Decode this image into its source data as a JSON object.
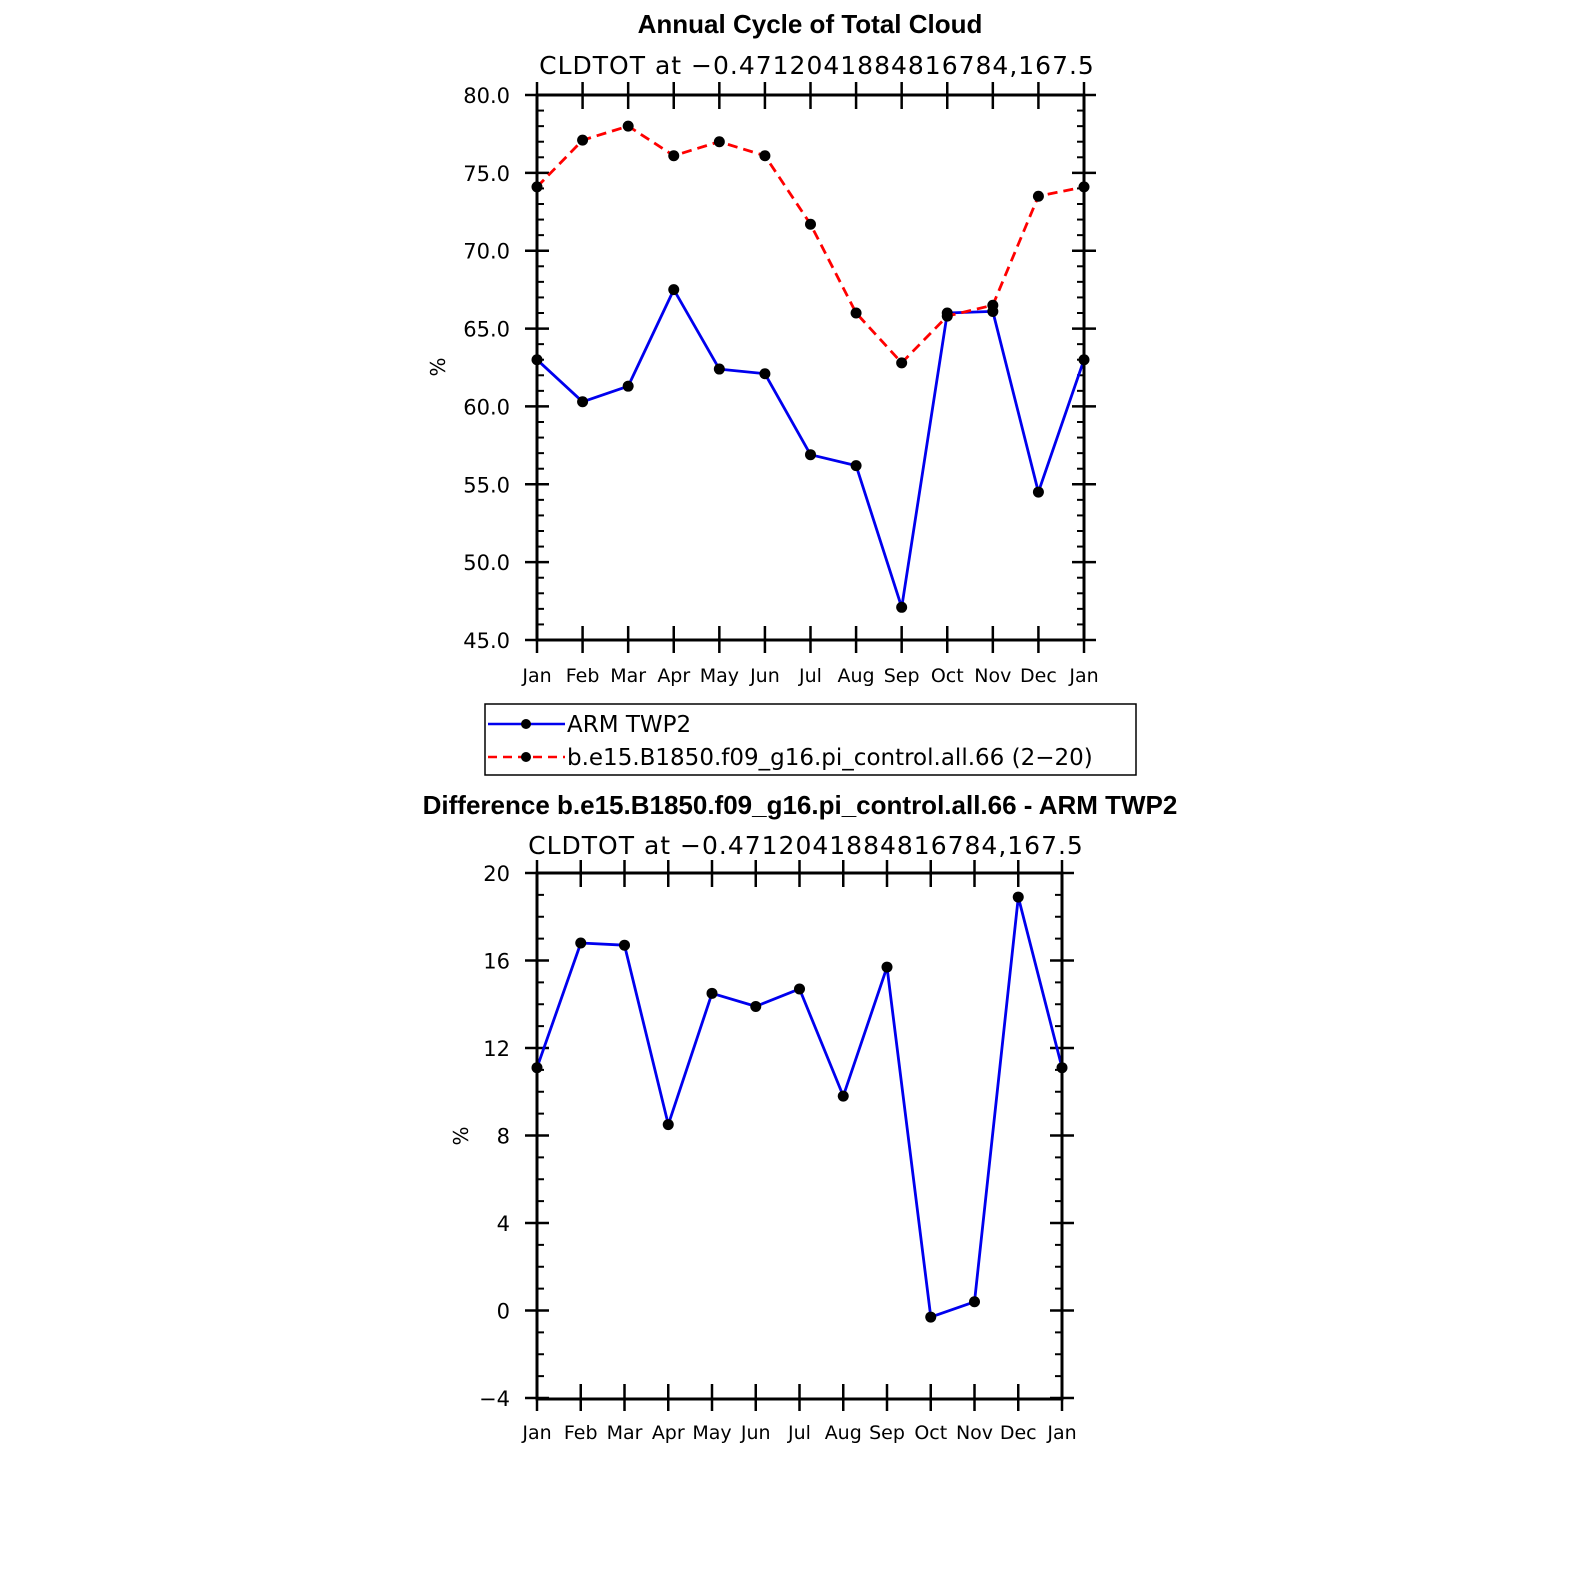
{
  "chart_data": [
    {
      "type": "line",
      "title": "Annual Cycle of Total Cloud",
      "subtitle": "CLDTOT at −0.4712041884816784,167.5",
      "xlabel": "",
      "ylabel": "%",
      "categories": [
        "Jan",
        "Feb",
        "Mar",
        "Apr",
        "May",
        "Jun",
        "Jul",
        "Aug",
        "Sep",
        "Oct",
        "Nov",
        "Dec",
        "Jan"
      ],
      "ylim": [
        45,
        80
      ],
      "yticks": [
        "45.0",
        "50.0",
        "55.0",
        "60.0",
        "65.0",
        "70.0",
        "75.0",
        "80.0"
      ],
      "grid": false,
      "legend_placement": "below",
      "series": [
        {
          "name": "ARM TWP2",
          "color": "#0000ee",
          "dashed": false,
          "values": [
            63.0,
            60.3,
            61.3,
            67.5,
            62.4,
            62.1,
            56.9,
            56.2,
            47.1,
            66.0,
            66.1,
            54.5,
            63.0
          ]
        },
        {
          "name": "b.e15.B1850.f09_g16.pi_control.all.66 (2−20)",
          "color": "#ff0000",
          "dashed": true,
          "values": [
            74.1,
            77.1,
            78.0,
            76.1,
            77.0,
            76.1,
            71.7,
            66.0,
            62.8,
            65.8,
            66.5,
            73.5,
            74.1
          ]
        }
      ]
    },
    {
      "type": "line",
      "title": "Difference b.e15.B1850.f09_g16.pi_control.all.66 - ARM TWP2",
      "subtitle": "CLDTOT at −0.4712041884816784,167.5",
      "xlabel": "",
      "ylabel": "%",
      "categories": [
        "Jan",
        "Feb",
        "Mar",
        "Apr",
        "May",
        "Jun",
        "Jul",
        "Aug",
        "Sep",
        "Oct",
        "Nov",
        "Dec",
        "Jan"
      ],
      "ylim": [
        -4,
        20
      ],
      "yticks": [
        "−4",
        "0",
        "4",
        "8",
        "12",
        "16",
        "20"
      ],
      "grid": false,
      "series": [
        {
          "color": "#0000ee",
          "dashed": false,
          "values": [
            11.1,
            16.8,
            16.7,
            8.5,
            14.5,
            13.9,
            14.7,
            9.8,
            15.7,
            -0.3,
            0.4,
            18.9,
            11.1
          ]
        }
      ]
    }
  ]
}
